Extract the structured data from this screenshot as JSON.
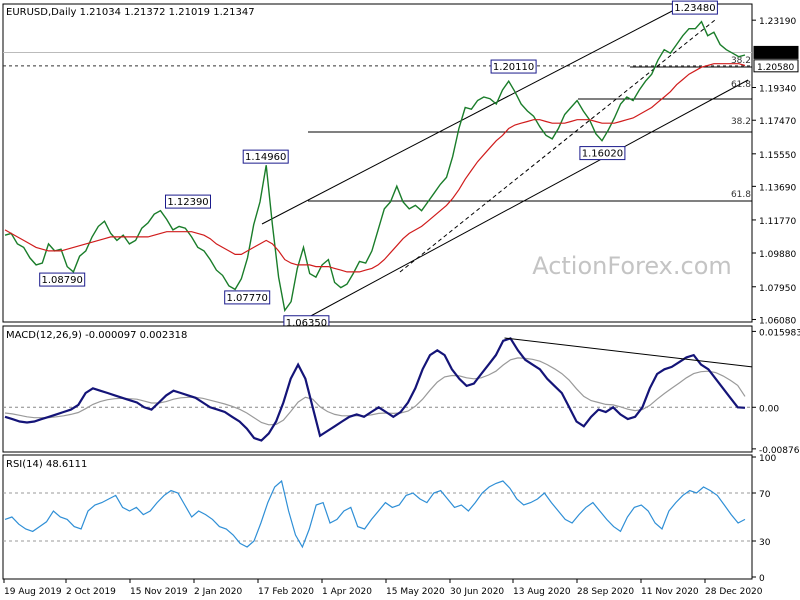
{
  "chart_data": {
    "type": "line",
    "title": "EURUSD,Daily  1.21034 1.21372 1.21019 1.21347",
    "watermark": "ActionForex.com",
    "x_ticks": [
      "19 Aug 2019",
      "2 Oct 2019",
      "15 Nov 2019",
      "2 Jan 2020",
      "17 Feb 2020",
      "1 Apr 2020",
      "15 May 2020",
      "30 Jun 2020",
      "13 Aug 2020",
      "28 Sep 2020",
      "11 Nov 2020",
      "28 Dec 2020"
    ],
    "price": {
      "ylim": [
        1.0605,
        1.24
      ],
      "y_ticks": [
        "1.23190",
        "1.21347",
        "1.20580",
        "1.19340",
        "1.17470",
        "1.15550",
        "1.13690",
        "1.11770",
        "1.09880",
        "1.07950",
        "1.06080"
      ],
      "series": [
        {
          "values": [
            1.109,
            1.11,
            1.104,
            1.102,
            1.096,
            1.092,
            1.093,
            1.104,
            1.1,
            1.101,
            1.091,
            1.088,
            1.097,
            1.1,
            1.108,
            1.114,
            1.117,
            1.11,
            1.106,
            1.109,
            1.104,
            1.106,
            1.113,
            1.116,
            1.121,
            1.123,
            1.118,
            1.112,
            1.114,
            1.113,
            1.108,
            1.102,
            1.1,
            1.095,
            1.089,
            1.086,
            1.08,
            1.078,
            1.084,
            1.096,
            1.115,
            1.128,
            1.149,
            1.115,
            1.085,
            1.066,
            1.071,
            1.09,
            1.102,
            1.087,
            1.085,
            1.092,
            1.095,
            1.082,
            1.079,
            1.081,
            1.087,
            1.094,
            1.093,
            1.1,
            1.112,
            1.124,
            1.128,
            1.137,
            1.128,
            1.124,
            1.126,
            1.123,
            1.128,
            1.133,
            1.138,
            1.142,
            1.154,
            1.17,
            1.182,
            1.181,
            1.186,
            1.188,
            1.187,
            1.184,
            1.192,
            1.197,
            1.191,
            1.184,
            1.18,
            1.177,
            1.171,
            1.166,
            1.164,
            1.17,
            1.178,
            1.182,
            1.186,
            1.18,
            1.175,
            1.167,
            1.163,
            1.169,
            1.176,
            1.184,
            1.188,
            1.186,
            1.192,
            1.197,
            1.201,
            1.209,
            1.215,
            1.213,
            1.218,
            1.223,
            1.227,
            1.227,
            1.231,
            1.223,
            1.225,
            1.218,
            1.215,
            1.213,
            1.211,
            1.212
          ]
        },
        {
          "values": [
            1.112,
            1.11,
            1.108,
            1.106,
            1.104,
            1.102,
            1.101,
            1.1,
            1.1,
            1.1,
            1.101,
            1.102,
            1.103,
            1.104,
            1.105,
            1.106,
            1.107,
            1.108,
            1.108,
            1.108,
            1.108,
            1.108,
            1.108,
            1.108,
            1.109,
            1.11,
            1.111,
            1.111,
            1.111,
            1.111,
            1.111,
            1.11,
            1.109,
            1.107,
            1.104,
            1.102,
            1.1,
            1.098,
            1.098,
            1.1,
            1.102,
            1.104,
            1.106,
            1.104,
            1.1,
            1.095,
            1.093,
            1.092,
            1.092,
            1.092,
            1.091,
            1.091,
            1.091,
            1.09,
            1.089,
            1.088,
            1.088,
            1.088,
            1.089,
            1.09,
            1.092,
            1.095,
            1.099,
            1.103,
            1.107,
            1.11,
            1.112,
            1.114,
            1.117,
            1.12,
            1.123,
            1.126,
            1.13,
            1.135,
            1.141,
            1.146,
            1.151,
            1.155,
            1.159,
            1.163,
            1.166,
            1.17,
            1.172,
            1.173,
            1.174,
            1.175,
            1.175,
            1.174,
            1.173,
            1.173,
            1.173,
            1.174,
            1.175,
            1.175,
            1.175,
            1.174,
            1.173,
            1.173,
            1.173,
            1.174,
            1.175,
            1.176,
            1.178,
            1.18,
            1.182,
            1.185,
            1.188,
            1.191,
            1.195,
            1.198,
            1.201,
            1.203,
            1.205,
            1.206,
            1.207,
            1.207,
            1.207,
            1.207,
            1.207,
            1.206
          ]
        }
      ],
      "callouts": [
        {
          "label": "1.23480",
          "value": 1.2348
        },
        {
          "label": "1.20110",
          "value": 1.2011
        },
        {
          "label": "1.16020",
          "value": 1.1602
        },
        {
          "label": "1.14960",
          "value": 1.1496
        },
        {
          "label": "1.12390",
          "value": 1.1239
        },
        {
          "label": "1.08790",
          "value": 1.0879
        },
        {
          "label": "1.07770",
          "value": 1.0777
        },
        {
          "label": "1.06350",
          "value": 1.0635
        }
      ],
      "levels": [
        {
          "value": 1.2134,
          "color": "#bbbbbb"
        },
        {
          "value": 1.2058,
          "color": "#333333",
          "dashed": true
        }
      ],
      "fib_levels": [
        {
          "label": "38.2",
          "value": 1.2064
        },
        {
          "label": "61.8",
          "value": 1.1926
        },
        {
          "label": "38.2",
          "value": 1.1713
        },
        {
          "label": "61.8",
          "value": 1.1296
        }
      ]
    },
    "macd": {
      "label": "MACD(12,26,9) -0.000097 0.002318",
      "ylim": [
        -0.009,
        0.0167
      ],
      "y_ticks": [
        "0.015983",
        "0.00",
        "-0.008762"
      ],
      "series": [
        {
          "values": [
            -0.002,
            -0.0025,
            -0.003,
            -0.0032,
            -0.003,
            -0.0025,
            -0.002,
            -0.0015,
            -0.001,
            -0.0005,
            0.0005,
            0.003,
            0.004,
            0.0035,
            0.003,
            0.0025,
            0.002,
            0.0015,
            0.001,
            0.0,
            -0.0005,
            0.001,
            0.0025,
            0.0035,
            0.003,
            0.0025,
            0.002,
            0.001,
            0.0,
            -0.0005,
            -0.001,
            -0.002,
            -0.003,
            -0.0045,
            -0.0065,
            -0.007,
            -0.0055,
            -0.003,
            0.001,
            0.006,
            0.009,
            0.006,
            0.0,
            -0.006,
            -0.005,
            -0.004,
            -0.003,
            -0.002,
            -0.0015,
            -0.002,
            -0.001,
            0.0,
            -0.001,
            -0.002,
            -0.001,
            0.001,
            0.004,
            0.008,
            0.011,
            0.012,
            0.011,
            0.008,
            0.006,
            0.0045,
            0.005,
            0.007,
            0.009,
            0.011,
            0.014,
            0.0145,
            0.012,
            0.01,
            0.009,
            0.008,
            0.006,
            0.0045,
            0.003,
            0.0,
            -0.003,
            -0.004,
            -0.002,
            -0.0005,
            -0.001,
            0.0,
            -0.0015,
            -0.0025,
            -0.002,
            0.0,
            0.004,
            0.007,
            0.008,
            0.0085,
            0.0095,
            0.0105,
            0.011,
            0.009,
            0.008,
            0.006,
            0.004,
            0.002,
            0.0,
            -0.0001
          ]
        },
        {
          "values": [
            -0.0012,
            -0.0014,
            -0.0017,
            -0.002,
            -0.0022,
            -0.0022,
            -0.0022,
            -0.002,
            -0.0018,
            -0.0015,
            -0.0011,
            -0.0003,
            0.0006,
            0.0012,
            0.0016,
            0.0018,
            0.0019,
            0.0018,
            0.0017,
            0.0013,
            0.0009,
            0.0009,
            0.0012,
            0.0017,
            0.002,
            0.0021,
            0.0021,
            0.0019,
            0.0015,
            0.0011,
            0.0007,
            0.0002,
            -0.0004,
            -0.0012,
            -0.0022,
            -0.0032,
            -0.0037,
            -0.0036,
            -0.0027,
            -0.0009,
            0.0011,
            0.0021,
            0.0017,
            0.0001,
            -0.0009,
            -0.0015,
            -0.0018,
            -0.0018,
            -0.0018,
            -0.0018,
            -0.0016,
            -0.0013,
            -0.0012,
            -0.0013,
            -0.0012,
            -0.0008,
            0.0002,
            0.0017,
            0.0036,
            0.0053,
            0.0064,
            0.0067,
            0.0066,
            0.0062,
            0.006,
            0.0062,
            0.0068,
            0.0076,
            0.0089,
            0.01,
            0.0104,
            0.0103,
            0.0101,
            0.0097,
            0.009,
            0.0081,
            0.0071,
            0.0057,
            0.0039,
            0.0023,
            0.0014,
            0.001,
            0.0006,
            0.0005,
            0.0001,
            -0.0004,
            -0.0007,
            -0.0005,
            0.0004,
            0.0017,
            0.0029,
            0.004,
            0.0051,
            0.0062,
            0.0071,
            0.0075,
            0.0076,
            0.0073,
            0.0066,
            0.0057,
            0.0046,
            0.0023
          ]
        }
      ],
      "trendline": {
        "from": 0.0146,
        "to": 0.0085
      }
    },
    "rsi": {
      "label": "RSI(14) 48.6111",
      "ylim": [
        0,
        100
      ],
      "y_ticks": [
        "100",
        "70",
        "30",
        "0"
      ],
      "levels": [
        70,
        30
      ],
      "values": [
        48,
        50,
        44,
        40,
        38,
        42,
        46,
        55,
        50,
        48,
        42,
        40,
        55,
        60,
        62,
        65,
        68,
        58,
        55,
        58,
        52,
        55,
        62,
        68,
        72,
        70,
        60,
        50,
        55,
        52,
        48,
        42,
        40,
        35,
        28,
        25,
        30,
        45,
        62,
        75,
        80,
        55,
        35,
        25,
        40,
        60,
        62,
        45,
        48,
        55,
        58,
        42,
        40,
        48,
        55,
        62,
        58,
        60,
        68,
        70,
        65,
        62,
        70,
        72,
        65,
        58,
        60,
        55,
        62,
        70,
        75,
        78,
        80,
        74,
        65,
        60,
        62,
        65,
        70,
        62,
        55,
        48,
        45,
        52,
        58,
        62,
        55,
        48,
        42,
        38,
        50,
        58,
        60,
        55,
        45,
        40,
        55,
        62,
        68,
        72,
        70,
        75,
        72,
        68,
        60,
        52,
        45,
        48
      ]
    }
  }
}
